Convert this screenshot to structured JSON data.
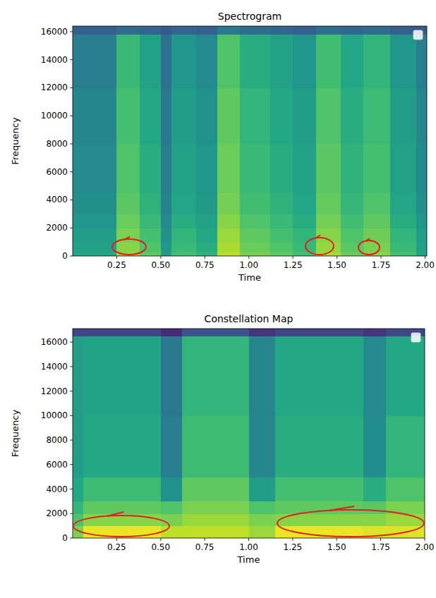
{
  "chart_data": [
    {
      "type": "heatmap",
      "title": "Spectrogram",
      "x_label": "Time",
      "y_label": "Frequency",
      "xlim": [
        0,
        2.01
      ],
      "ylim": [
        0,
        16400
      ],
      "zlim": [
        0,
        1
      ],
      "legend": "upper right",
      "xticks": [
        0.25,
        {
          "value": 0.5,
          "label": "0.50"
        },
        0.75,
        {
          "value": 1,
          "label": "1.00"
        },
        1.25,
        {
          "value": 1.5,
          "label": "1.50"
        },
        1.75,
        {
          "value": 2,
          "label": "2.00"
        }
      ],
      "yticks": [
        0,
        2000,
        4000,
        6000,
        8000,
        10000,
        12000,
        14000,
        16000
      ],
      "x_edges": [
        0,
        0.25,
        0.38,
        0.5,
        0.56,
        0.7,
        0.82,
        0.95,
        1.12,
        1.25,
        1.38,
        1.52,
        1.65,
        1.8,
        1.95,
        2.01
      ],
      "y_edges": [
        0,
        300,
        1000,
        2000,
        3000,
        4500,
        8000,
        12000,
        15800,
        16400
      ],
      "cells": [
        [
          0.6,
          0.85,
          0.75,
          0.55,
          0.7,
          0.65,
          0.9,
          0.8,
          0.75,
          0.7,
          0.87,
          0.77,
          0.83,
          0.7,
          0.6
        ],
        [
          0.57,
          0.82,
          0.72,
          0.52,
          0.67,
          0.62,
          0.87,
          0.77,
          0.72,
          0.67,
          0.84,
          0.74,
          0.8,
          0.67,
          0.57
        ],
        [
          0.55,
          0.8,
          0.7,
          0.5,
          0.65,
          0.6,
          0.85,
          0.75,
          0.7,
          0.65,
          0.82,
          0.72,
          0.78,
          0.65,
          0.55
        ],
        [
          0.52,
          0.77,
          0.67,
          0.47,
          0.62,
          0.57,
          0.82,
          0.72,
          0.67,
          0.62,
          0.79,
          0.69,
          0.75,
          0.62,
          0.52
        ],
        [
          0.49,
          0.74,
          0.64,
          0.44,
          0.59,
          0.54,
          0.79,
          0.69,
          0.64,
          0.59,
          0.76,
          0.66,
          0.72,
          0.59,
          0.49
        ],
        [
          0.47,
          0.72,
          0.62,
          0.42,
          0.57,
          0.52,
          0.77,
          0.67,
          0.62,
          0.57,
          0.74,
          0.64,
          0.7,
          0.57,
          0.47
        ],
        [
          0.45,
          0.7,
          0.6,
          0.4,
          0.55,
          0.5,
          0.75,
          0.65,
          0.6,
          0.55,
          0.72,
          0.62,
          0.68,
          0.55,
          0.45
        ],
        [
          0.42,
          0.67,
          0.57,
          0.37,
          0.52,
          0.47,
          0.72,
          0.62,
          0.57,
          0.52,
          0.69,
          0.59,
          0.65,
          0.52,
          0.42
        ],
        [
          0.3,
          0.35,
          0.32,
          0.28,
          0.32,
          0.3,
          0.4,
          0.35,
          0.33,
          0.3,
          0.36,
          0.33,
          0.35,
          0.3,
          0.28
        ]
      ]
    },
    {
      "type": "heatmap",
      "title": "Constellation Map",
      "x_label": "Time",
      "y_label": "Frequency",
      "xlim": [
        0,
        2.0
      ],
      "ylim": [
        0,
        17100
      ],
      "zlim": [
        0,
        1
      ],
      "legend": "upper right",
      "xticks": [
        0.25,
        {
          "value": 0.5,
          "label": "0.50"
        },
        0.75,
        {
          "value": 1,
          "label": "1.00"
        },
        1.25,
        {
          "value": 1.5,
          "label": "1.50"
        },
        1.75,
        {
          "value": 2,
          "label": "2.00"
        }
      ],
      "yticks": [
        0,
        2000,
        4000,
        6000,
        8000,
        10000,
        12000,
        14000,
        16000
      ],
      "x_edges": [
        0,
        0.06,
        0.5,
        0.62,
        1.0,
        1.15,
        1.65,
        1.78,
        2.0
      ],
      "y_edges": [
        0,
        1000,
        2000,
        3000,
        5000,
        10000,
        16500,
        17100
      ],
      "cells": [
        [
          0.8,
          0.97,
          0.9,
          0.9,
          0.85,
          0.97,
          0.95,
          0.95
        ],
        [
          0.72,
          0.82,
          0.8,
          0.85,
          0.8,
          0.82,
          0.82,
          0.85
        ],
        [
          0.65,
          0.75,
          0.72,
          0.8,
          0.72,
          0.75,
          0.74,
          0.8
        ],
        [
          0.6,
          0.68,
          0.5,
          0.75,
          0.55,
          0.7,
          0.62,
          0.72
        ],
        [
          0.55,
          0.6,
          0.42,
          0.68,
          0.45,
          0.62,
          0.48,
          0.65
        ],
        [
          0.55,
          0.58,
          0.4,
          0.65,
          0.45,
          0.6,
          0.47,
          0.6
        ],
        [
          0.2,
          0.2,
          0.12,
          0.25,
          0.15,
          0.2,
          0.15,
          0.22
        ]
      ]
    }
  ]
}
